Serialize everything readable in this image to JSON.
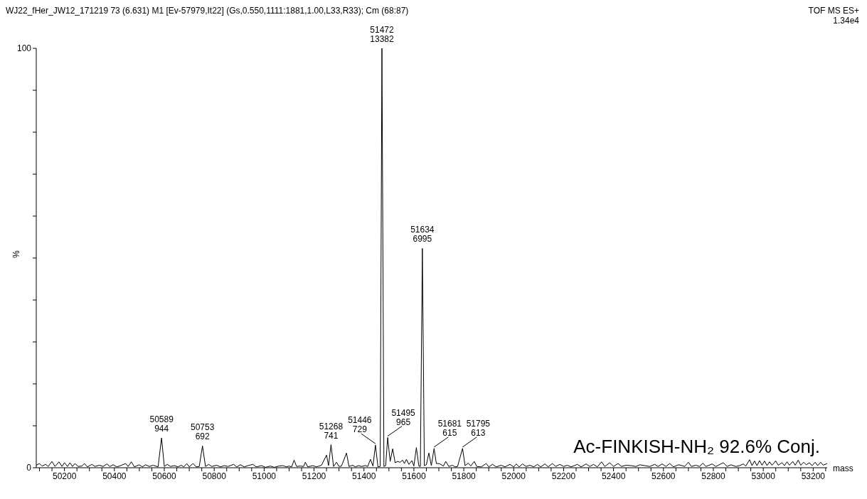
{
  "chart_data": {
    "type": "line",
    "title": "WJ22_fHer_JW12_171219  73 (6.631) M1 [Ev-57979,It22] (Gs,0.550,1111:1881,1.00,L33,R33); Cm (68:87)",
    "xlabel": "mass",
    "ylabel": "%",
    "annotations": [
      "TOF MS ES+",
      "1.34e4",
      "Ac-FINKISH-NH₂ 92.6% Conj.",
      {
        "text": "50589\n944",
        "x": 50589,
        "y": 7.1
      },
      {
        "text": "50753\n692",
        "x": 50753,
        "y": 5.2
      },
      {
        "text": "51268\n741",
        "x": 51268,
        "y": 5.5
      },
      {
        "text": "51446\n729",
        "x": 51446,
        "y": 5.4
      },
      {
        "text": "51472\n13382",
        "x": 51472,
        "y": 100
      },
      {
        "text": "51495\n965",
        "x": 51495,
        "y": 7.2
      },
      {
        "text": "51634\n6995",
        "x": 51634,
        "y": 52.3
      },
      {
        "text": "51681\n615",
        "x": 51681,
        "y": 4.6
      },
      {
        "text": "51795\n613",
        "x": 51795,
        "y": 4.6
      }
    ],
    "xlim": [
      50087,
      53256
    ],
    "ylim": [
      0,
      100
    ],
    "xticks": [
      {
        "value": 50100,
        "label": null
      },
      {
        "value": 50150,
        "label": null
      },
      50200,
      {
        "value": 50250,
        "label": null
      },
      {
        "value": 50300,
        "label": null
      },
      {
        "value": 50350,
        "label": null
      },
      50400,
      {
        "value": 50450,
        "label": null
      },
      {
        "value": 50500,
        "label": null
      },
      {
        "value": 50550,
        "label": null
      },
      50600,
      {
        "value": 50650,
        "label": null
      },
      {
        "value": 50700,
        "label": null
      },
      {
        "value": 50750,
        "label": null
      },
      50800,
      {
        "value": 50850,
        "label": null
      },
      {
        "value": 50900,
        "label": null
      },
      {
        "value": 50950,
        "label": null
      },
      51000,
      {
        "value": 51050,
        "label": null
      },
      {
        "value": 51100,
        "label": null
      },
      {
        "value": 51150,
        "label": null
      },
      51200,
      {
        "value": 51250,
        "label": null
      },
      {
        "value": 51300,
        "label": null
      },
      {
        "value": 51350,
        "label": null
      },
      51400,
      {
        "value": 51450,
        "label": null
      },
      {
        "value": 51500,
        "label": null
      },
      {
        "value": 51550,
        "label": null
      },
      51600,
      {
        "value": 51650,
        "label": null
      },
      {
        "value": 51700,
        "label": null
      },
      {
        "value": 51750,
        "label": null
      },
      51800,
      {
        "value": 51850,
        "label": null
      },
      {
        "value": 51900,
        "label": null
      },
      {
        "value": 51950,
        "label": null
      },
      52000,
      {
        "value": 52050,
        "label": null
      },
      {
        "value": 52100,
        "label": null
      },
      {
        "value": 52150,
        "label": null
      },
      52200,
      {
        "value": 52250,
        "label": null
      },
      {
        "value": 52300,
        "label": null
      },
      {
        "value": 52350,
        "label": null
      },
      52400,
      {
        "value": 52450,
        "label": null
      },
      {
        "value": 52500,
        "label": null
      },
      {
        "value": 52550,
        "label": null
      },
      52600,
      {
        "value": 52650,
        "label": null
      },
      {
        "value": 52700,
        "label": null
      },
      {
        "value": 52750,
        "label": null
      },
      52800,
      {
        "value": 52850,
        "label": null
      },
      {
        "value": 52900,
        "label": null
      },
      {
        "value": 52950,
        "label": null
      },
      53000,
      {
        "value": 53050,
        "label": null
      },
      {
        "value": 53100,
        "label": null
      },
      {
        "value": 53150,
        "label": null
      },
      53200,
      {
        "value": 53250,
        "label": null
      }
    ],
    "yticks": [
      0,
      {
        "value": 10,
        "label": null
      },
      {
        "value": 20,
        "label": null
      },
      {
        "value": 30,
        "label": null
      },
      {
        "value": 40,
        "label": null
      },
      {
        "value": 50,
        "label": null
      },
      {
        "value": 60,
        "label": null
      },
      {
        "value": 70,
        "label": null
      },
      {
        "value": 80,
        "label": null
      },
      {
        "value": 90,
        "label": null
      },
      100
    ],
    "marker": "none",
    "line_style": "solid",
    "series": [
      {
        "color": "#000000",
        "x": [
          50087,
          50100,
          50110,
          50125,
          50135,
          50150,
          50162,
          50178,
          50190,
          50200,
          50212,
          50222,
          50232,
          50242,
          50255,
          50270,
          50280,
          50292,
          50310,
          50322,
          50340,
          50355,
          50370,
          50382,
          50395,
          50410,
          50425,
          50445,
          50455,
          50468,
          50480,
          50500,
          50512,
          50525,
          50540,
          50555,
          50575,
          50589,
          50600,
          50612,
          50625,
          50640,
          50655,
          50668,
          50678,
          50690,
          50700,
          50715,
          50728,
          50740,
          50753,
          50765,
          50778,
          50790,
          50810,
          50825,
          50840,
          50855,
          50878,
          50890,
          50905,
          50920,
          50935,
          50955,
          50968,
          50990,
          51005,
          51025,
          51040,
          51060,
          51075,
          51090,
          51100,
          51110,
          51120,
          51130,
          51145,
          51158,
          51165,
          51175,
          51195,
          51210,
          51230,
          51250,
          51258,
          51268,
          51278,
          51290,
          51300,
          51310,
          51330,
          51340,
          51355,
          51365,
          51378,
          51390,
          51405,
          51415,
          51426,
          51436,
          51446,
          51456,
          51465,
          51472,
          51480,
          51487,
          51495,
          51505,
          51515,
          51525,
          51535,
          51545,
          51555,
          51562,
          51570,
          51580,
          51592,
          51600,
          51610,
          51620,
          51626,
          51634,
          51642,
          51650,
          51660,
          51670,
          51681,
          51690,
          51697,
          51705,
          51718,
          51728,
          51740,
          51755,
          51765,
          51775,
          51795,
          51805,
          51818,
          51828,
          51842,
          51852,
          51870,
          51890,
          51900,
          51915,
          51930,
          51950,
          51965,
          51985,
          52000,
          52010,
          52022,
          52035,
          52050,
          52065,
          52080,
          52095,
          52108,
          52125,
          52138,
          52155,
          52168,
          52185,
          52200,
          52215,
          52230,
          52255,
          52270,
          52290,
          52305,
          52320,
          52335,
          52352,
          52365,
          52385,
          52400,
          52418,
          52432,
          52450,
          52470,
          52490,
          52505,
          52525,
          52545,
          52565,
          52578,
          52595,
          52610,
          52625,
          52640,
          52660,
          52675,
          52685,
          52700,
          52712,
          52730,
          52745,
          52758,
          52770,
          52795,
          52810,
          52840,
          52855,
          52870,
          52890,
          52905,
          52920,
          52930,
          52945,
          52955,
          52965,
          52975,
          52985,
          52995,
          53005,
          53015,
          53025,
          53035,
          53050,
          53060,
          53075,
          53085,
          53095,
          53105,
          53118,
          53128,
          53140,
          53150,
          53162,
          53172,
          53185,
          53195,
          53208,
          53218,
          53230,
          53240,
          53256
        ],
        "values": [
          0.6,
          1.0,
          0.4,
          0.8,
          0.3,
          1.5,
          0.3,
          1.4,
          0.3,
          1.2,
          0.3,
          1.2,
          0.3,
          1.0,
          0.3,
          0.4,
          1.0,
          0.2,
          0.8,
          0.3,
          0.6,
          0.3,
          0.9,
          0.3,
          0.7,
          0.2,
          0.5,
          1.0,
          0.3,
          1.4,
          0.2,
          0.7,
          0.2,
          0.7,
          0.3,
          0.6,
          0.2,
          7.1,
          0.3,
          0.8,
          0.3,
          0.5,
          0.2,
          0.6,
          0.2,
          1.0,
          0.2,
          1.0,
          0.2,
          0.3,
          5.2,
          0.3,
          0.8,
          0.3,
          0.6,
          0.2,
          0.5,
          0.3,
          0.8,
          0.2,
          0.7,
          0.2,
          0.5,
          0.8,
          0.2,
          0.5,
          0.1,
          0.4,
          0.1,
          0.4,
          0.5,
          0.2,
          0.4,
          0.2,
          1.8,
          0.3,
          0.4,
          0.3,
          1.3,
          0.2,
          0.5,
          0.2,
          0.6,
          3.0,
          0.5,
          5.5,
          0.3,
          1.3,
          0.3,
          0.4,
          3.5,
          0.3,
          0.6,
          0.2,
          0.5,
          0.3,
          0.5,
          0.3,
          2.0,
          0.4,
          5.4,
          0.2,
          0.3,
          100,
          0.3,
          0.5,
          7.2,
          1.5,
          4.5,
          1.2,
          1.5,
          1.3,
          1.8,
          1.0,
          2.0,
          0.8,
          1.7,
          0.4,
          4.8,
          0.4,
          0.3,
          52.3,
          0.5,
          0.7,
          3.5,
          0.5,
          4.6,
          1.0,
          1.0,
          0.9,
          0.4,
          1.5,
          0.3,
          0.6,
          0.2,
          0.3,
          4.6,
          0.5,
          1.1,
          0.4,
          1.5,
          0.3,
          0.2,
          1.0,
          0.2,
          0.8,
          0.2,
          0.6,
          0.2,
          0.8,
          0.2,
          0.9,
          0.2,
          0.9,
          0.3,
          0.6,
          0.2,
          0.8,
          0.2,
          0.9,
          0.2,
          1.0,
          0.3,
          0.8,
          0.3,
          0.6,
          0.2,
          0.8,
          0.2,
          0.9,
          0.3,
          0.8,
          0.2,
          1.4,
          0.3,
          1.2,
          0.3,
          1.0,
          0.3,
          0.6,
          0.5,
          0.3,
          0.7,
          0.5,
          0.3,
          0.8,
          0.3,
          0.9,
          0.3,
          1.0,
          0.2,
          0.7,
          0.5,
          0.3,
          1.3,
          0.3,
          0.6,
          0.3,
          1.1,
          0.3,
          0.9,
          0.3,
          1.2,
          0.3,
          0.7,
          0.3,
          0.5,
          0.9,
          0.4,
          1.9,
          0.5,
          1.6,
          0.5,
          1.7,
          0.6,
          1.6,
          0.5,
          1.4,
          0.6,
          1.6,
          0.6,
          1.2,
          0.5,
          1.4,
          0.6,
          1.5,
          0.6,
          1.8,
          0.6,
          1.3,
          0.7,
          1.2,
          0.5,
          1.3,
          0.5,
          1.3,
          0.6,
          1.0
        ]
      }
    ]
  }
}
